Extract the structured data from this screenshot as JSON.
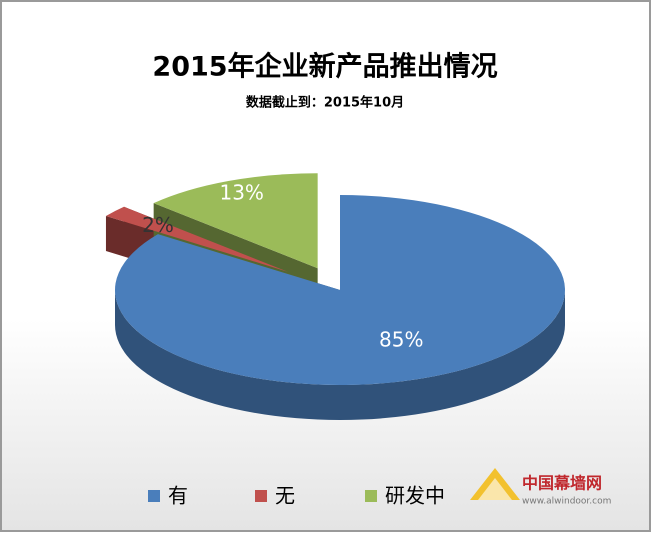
{
  "chart_data": {
    "type": "pie3d",
    "title": "2015年企业新产品推出情况",
    "subtitle": "数据截止到：2015年10月",
    "categories": [
      "有",
      "无",
      "研发中"
    ],
    "values": [
      85,
      2,
      13
    ],
    "value_labels": [
      "85%",
      "2%",
      "13%"
    ],
    "colors": [
      "#4a7ebb",
      "#c0504d",
      "#9bbb59"
    ],
    "legend": "bottom"
  },
  "watermark": {
    "name": "中国幕墙网",
    "url": "www.alwindoor.com"
  }
}
